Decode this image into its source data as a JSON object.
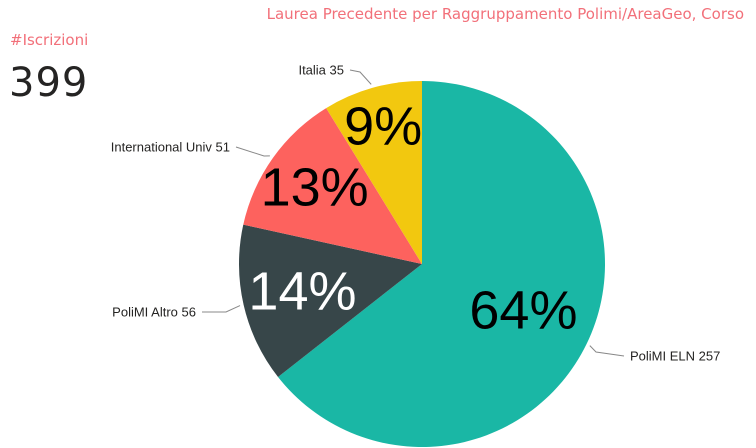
{
  "kpi": {
    "label": "#Iscrizioni",
    "value": "399"
  },
  "chart_data": {
    "type": "pie",
    "title": "Laurea Precedente per Raggruppamento Polimi/AreaGeo, Corso",
    "slices": [
      {
        "label": "PoliMI ELN",
        "value": 257,
        "percent": "64%",
        "color": "#1ab7a5",
        "pct_color": "#000000"
      },
      {
        "label": "PoliMI Altro",
        "value": 56,
        "percent": "14%",
        "color": "#374649",
        "pct_color": "#ffffff"
      },
      {
        "label": "International Univ",
        "value": 51,
        "percent": "13%",
        "color": "#fd625e",
        "pct_color": "#000000"
      },
      {
        "label": "Italia",
        "value": 35,
        "percent": "9%",
        "color": "#f2c80f",
        "pct_color": "#000000"
      }
    ]
  }
}
